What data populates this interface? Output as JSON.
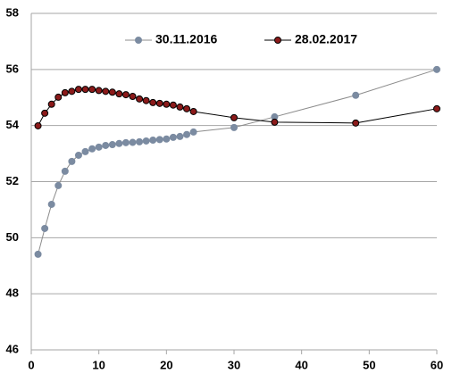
{
  "chart_data": {
    "type": "line",
    "x": [
      1,
      2,
      3,
      4,
      5,
      6,
      7,
      8,
      9,
      10,
      11,
      12,
      13,
      14,
      15,
      16,
      17,
      18,
      19,
      20,
      21,
      22,
      23,
      24,
      30,
      36,
      48,
      60
    ],
    "series": [
      {
        "name": "30.11.2016",
        "color": "#8c8c8c",
        "marker_color": "#7b8ba1",
        "values": [
          49.41,
          50.33,
          51.19,
          51.86,
          52.37,
          52.72,
          52.94,
          53.07,
          53.17,
          53.23,
          53.29,
          53.32,
          53.36,
          53.39,
          53.4,
          53.42,
          53.45,
          53.48,
          53.5,
          53.52,
          53.58,
          53.61,
          53.68,
          53.77,
          53.93,
          54.31,
          55.08,
          56.0
        ]
      },
      {
        "name": "28.02.2017",
        "color": "#000000",
        "marker_color": "#8b1a1a",
        "values": [
          53.99,
          54.44,
          54.76,
          55.01,
          55.17,
          55.22,
          55.29,
          55.29,
          55.29,
          55.25,
          55.22,
          55.19,
          55.13,
          55.1,
          55.04,
          54.95,
          54.89,
          54.82,
          54.79,
          54.76,
          54.73,
          54.66,
          54.6,
          54.5,
          54.28,
          54.12,
          54.09,
          54.6
        ]
      }
    ],
    "xlim": [
      0,
      60
    ],
    "xticks": [
      0,
      10,
      20,
      30,
      40,
      50,
      60
    ],
    "ylim": [
      46,
      58
    ],
    "yticks": [
      46,
      48,
      50,
      52,
      54,
      56,
      58
    ],
    "grid": true,
    "legend": "top"
  }
}
